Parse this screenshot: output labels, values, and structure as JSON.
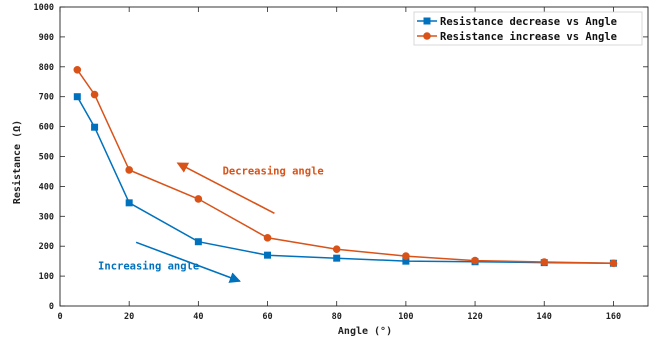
{
  "chart_data": {
    "type": "line",
    "xlabel": "Angle (°)",
    "ylabel": "Resistance (Ω)",
    "xlim": [
      0,
      170
    ],
    "ylim": [
      0,
      1000
    ],
    "xticks": [
      0,
      20,
      40,
      60,
      80,
      100,
      120,
      140,
      160
    ],
    "yticks": [
      0,
      100,
      200,
      300,
      400,
      500,
      600,
      700,
      800,
      900,
      1000
    ],
    "grid": false,
    "legend_position": "top-right",
    "series": [
      {
        "name": "Resistance decrease vs Angle",
        "color": "#0072BD",
        "marker": "square",
        "x": [
          5,
          10,
          20,
          40,
          60,
          80,
          100,
          120,
          140,
          160
        ],
        "y": [
          700,
          598,
          345,
          215,
          170,
          160,
          150,
          148,
          145,
          143
        ]
      },
      {
        "name": "Resistance increase vs Angle",
        "color": "#D95319",
        "marker": "circle",
        "x": [
          5,
          10,
          20,
          40,
          60,
          80,
          100,
          120,
          140,
          160
        ],
        "y": [
          790,
          707,
          455,
          358,
          228,
          190,
          167,
          152,
          147,
          143
        ]
      }
    ],
    "annotations": [
      {
        "text": "Decreasing angle",
        "color": "#D95319",
        "arrow_from": [
          62,
          310
        ],
        "arrow_to": [
          34,
          478
        ],
        "text_at": [
          47,
          440
        ]
      },
      {
        "text": "Increasing angle",
        "color": "#0072BD",
        "arrow_from": [
          22,
          213
        ],
        "arrow_to": [
          52,
          83
        ],
        "text_at": [
          11,
          122
        ]
      }
    ]
  }
}
